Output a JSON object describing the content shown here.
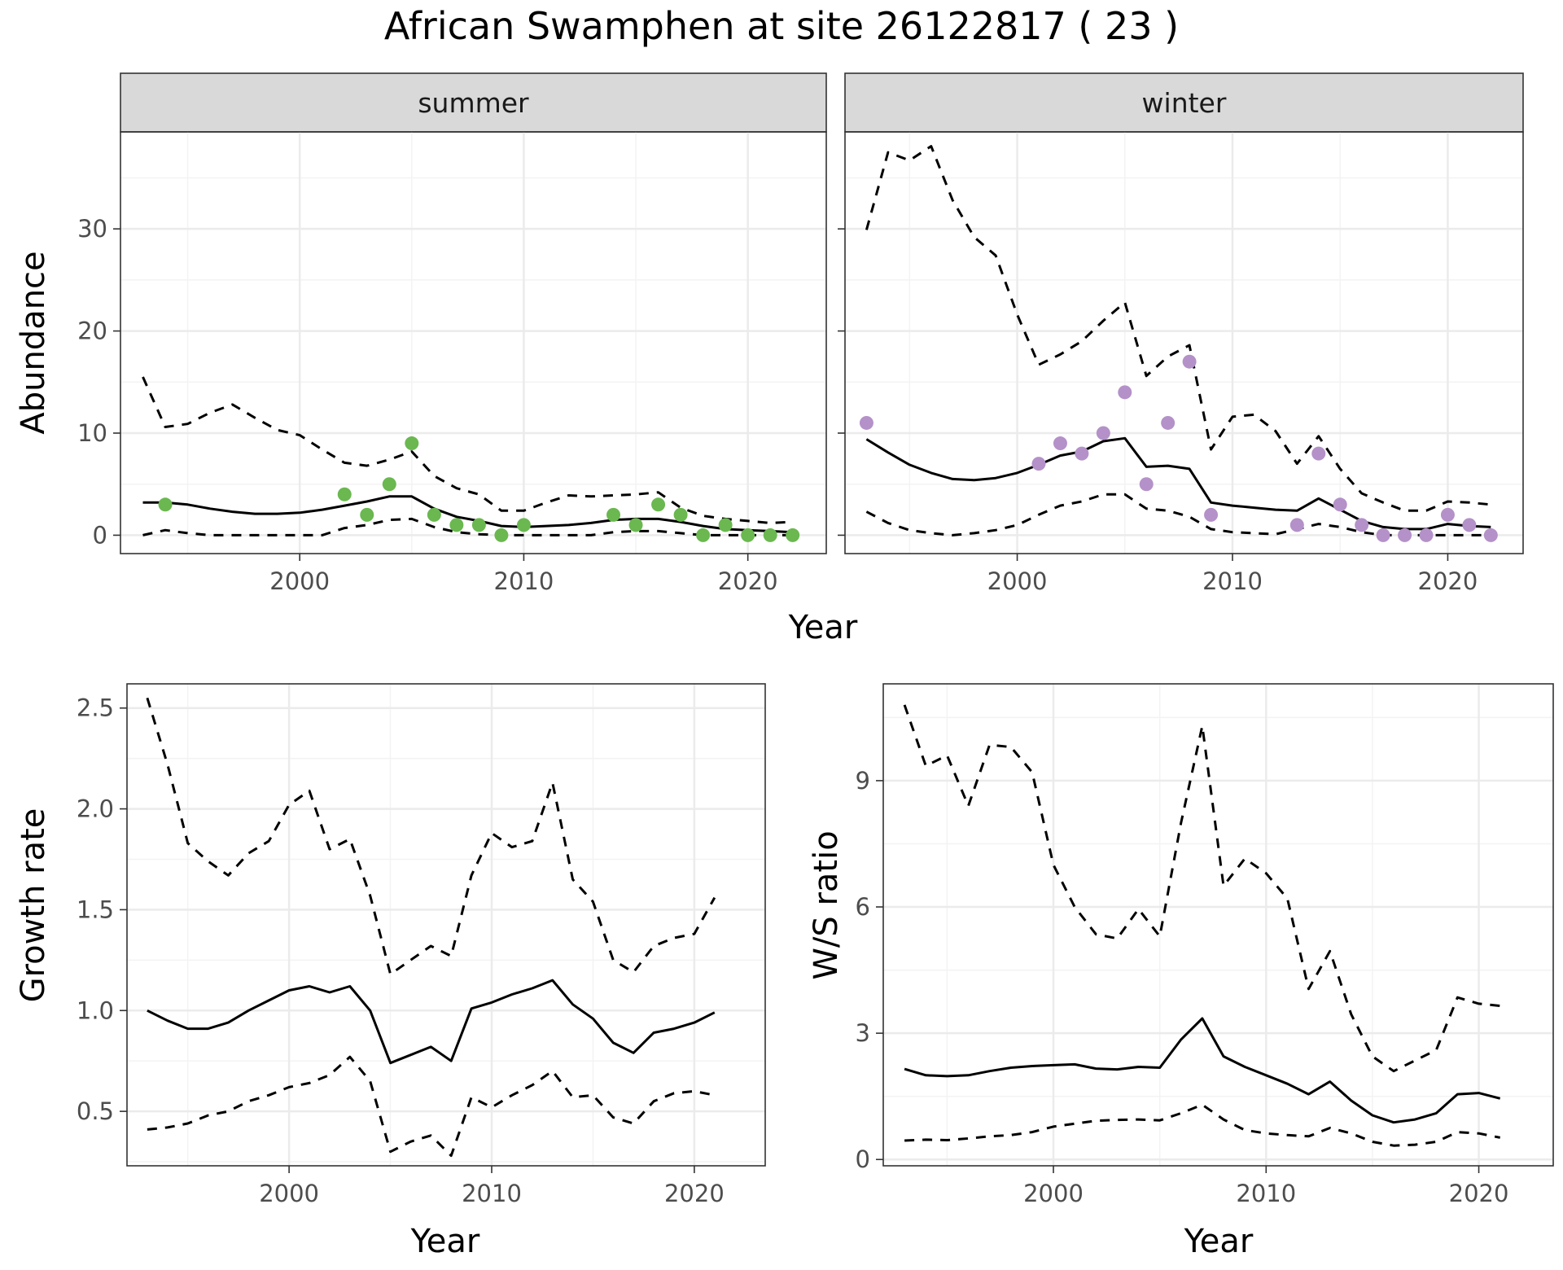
{
  "figure": {
    "title": "African Swamphen at site 26122817 ( 23 )"
  },
  "colors": {
    "summer_points": "#6ab84f",
    "winter_points": "#b491c8",
    "lines": "#000000",
    "strip_background": "#d9d9d9",
    "grid": "#ebebeb"
  },
  "chart_data": [
    {
      "id": "abundance_summer",
      "type": "line",
      "facet": "summer",
      "xlabel": "Year",
      "ylabel": "Abundance",
      "xlim": [
        1992,
        2023.5
      ],
      "ylim": [
        -1.8,
        39.5
      ],
      "x_ticks": [
        2000,
        2010,
        2020
      ],
      "y_ticks": [
        0,
        10,
        20,
        30
      ],
      "grid": true,
      "x": [
        1993,
        1994,
        1995,
        1996,
        1997,
        1998,
        1999,
        2000,
        2001,
        2002,
        2003,
        2004,
        2005,
        2006,
        2007,
        2008,
        2009,
        2010,
        2011,
        2012,
        2013,
        2014,
        2015,
        2016,
        2017,
        2018,
        2019,
        2020,
        2021,
        2022
      ],
      "series": [
        {
          "role": "estimate",
          "values": [
            3.2,
            3.2,
            3.0,
            2.6,
            2.3,
            2.1,
            2.1,
            2.2,
            2.5,
            2.9,
            3.3,
            3.8,
            3.8,
            2.6,
            1.8,
            1.4,
            0.9,
            0.8,
            0.9,
            1.0,
            1.2,
            1.5,
            1.6,
            1.6,
            1.3,
            0.9,
            0.6,
            0.5,
            0.4,
            0.3
          ]
        },
        {
          "role": "upper",
          "values": [
            15.5,
            10.6,
            10.9,
            12.0,
            12.8,
            11.5,
            10.3,
            9.8,
            8.4,
            7.1,
            6.8,
            7.4,
            8.2,
            5.8,
            4.6,
            4.0,
            2.4,
            2.4,
            3.2,
            3.9,
            3.8,
            3.9,
            4.0,
            4.2,
            2.7,
            1.9,
            1.6,
            1.4,
            1.2,
            1.3
          ]
        },
        {
          "role": "lower",
          "values": [
            0.0,
            0.5,
            0.2,
            0.0,
            0.0,
            0.0,
            0.0,
            0.0,
            0.0,
            0.7,
            1.0,
            1.5,
            1.6,
            0.8,
            0.3,
            0.1,
            0.0,
            0.0,
            0.0,
            0.0,
            0.0,
            0.3,
            0.4,
            0.4,
            0.2,
            0.0,
            0.0,
            0.0,
            0.0,
            0.0
          ]
        }
      ],
      "points": {
        "x": [
          1994,
          2002,
          2003,
          2004,
          2005,
          2006,
          2007,
          2008,
          2009,
          2010,
          2014,
          2015,
          2016,
          2017,
          2018,
          2019,
          2020,
          2021,
          2022
        ],
        "y": [
          3,
          4,
          2,
          5,
          9,
          2,
          1,
          1,
          0,
          1,
          2,
          1,
          3,
          2,
          0,
          1,
          0,
          0,
          0
        ]
      }
    },
    {
      "id": "abundance_winter",
      "type": "line",
      "facet": "winter",
      "xlabel": "Year",
      "ylabel": "Abundance",
      "xlim": [
        1992,
        2023.5
      ],
      "ylim": [
        -1.8,
        39.5
      ],
      "x_ticks": [
        2000,
        2010,
        2020
      ],
      "y_ticks": [
        0,
        10,
        20,
        30
      ],
      "grid": true,
      "x": [
        1993,
        1994,
        1995,
        1996,
        1997,
        1998,
        1999,
        2000,
        2001,
        2002,
        2003,
        2004,
        2005,
        2006,
        2007,
        2008,
        2009,
        2010,
        2011,
        2012,
        2013,
        2014,
        2015,
        2016,
        2017,
        2018,
        2019,
        2020,
        2021,
        2022
      ],
      "series": [
        {
          "role": "estimate",
          "values": [
            9.4,
            8.1,
            6.9,
            6.1,
            5.5,
            5.4,
            5.6,
            6.1,
            6.9,
            7.8,
            8.2,
            9.2,
            9.5,
            6.7,
            6.8,
            6.5,
            3.2,
            2.9,
            2.7,
            2.5,
            2.4,
            3.6,
            2.5,
            1.4,
            0.8,
            0.6,
            0.6,
            1.1,
            0.9,
            0.8
          ]
        },
        {
          "role": "upper",
          "values": [
            29.9,
            37.5,
            36.7,
            38.1,
            32.8,
            29.2,
            27.4,
            21.6,
            16.7,
            17.7,
            19.0,
            21.0,
            22.8,
            15.6,
            17.5,
            18.6,
            8.4,
            11.6,
            11.8,
            10.2,
            7.0,
            9.7,
            6.5,
            4.1,
            3.2,
            2.4,
            2.4,
            3.3,
            3.2,
            3.0
          ]
        },
        {
          "role": "lower",
          "values": [
            2.3,
            1.2,
            0.5,
            0.2,
            0.0,
            0.2,
            0.5,
            1.0,
            2.0,
            2.9,
            3.3,
            4.0,
            4.0,
            2.6,
            2.4,
            1.8,
            0.6,
            0.3,
            0.2,
            0.1,
            0.6,
            1.1,
            0.8,
            0.3,
            0.0,
            0.0,
            0.0,
            0.0,
            0.0,
            0.0
          ]
        }
      ],
      "points": {
        "x": [
          1993,
          2001,
          2002,
          2003,
          2004,
          2005,
          2006,
          2007,
          2008,
          2009,
          2013,
          2014,
          2015,
          2016,
          2017,
          2018,
          2019,
          2020,
          2021,
          2022
        ],
        "y": [
          11,
          7,
          9,
          8,
          10,
          14,
          5,
          11,
          17,
          2,
          1,
          8,
          3,
          1,
          0,
          0,
          0,
          2,
          1,
          0
        ]
      }
    },
    {
      "id": "growth_rate",
      "type": "line",
      "xlabel": "Year",
      "ylabel": "Growth rate",
      "xlim": [
        1992,
        2023.5
      ],
      "ylim": [
        0.23,
        2.62
      ],
      "x_ticks": [
        2000,
        2010,
        2020
      ],
      "y_ticks": [
        0.5,
        1.0,
        1.5,
        2.0,
        2.5
      ],
      "y_tick_labels": [
        "0.5",
        "1.0",
        "1.5",
        "2.0",
        "2.5"
      ],
      "grid": true,
      "x": [
        1993,
        1994,
        1995,
        1996,
        1997,
        1998,
        1999,
        2000,
        2001,
        2002,
        2003,
        2004,
        2005,
        2006,
        2007,
        2008,
        2009,
        2010,
        2011,
        2012,
        2013,
        2014,
        2015,
        2016,
        2017,
        2018,
        2019,
        2020,
        2021
      ],
      "series": [
        {
          "role": "estimate",
          "values": [
            1.0,
            0.95,
            0.91,
            0.91,
            0.94,
            1.0,
            1.05,
            1.1,
            1.12,
            1.09,
            1.12,
            1.0,
            0.74,
            0.78,
            0.82,
            0.75,
            1.01,
            1.04,
            1.08,
            1.11,
            1.15,
            1.03,
            0.96,
            0.84,
            0.79,
            0.89,
            0.91,
            0.94,
            0.99
          ]
        },
        {
          "role": "upper",
          "values": [
            2.55,
            2.22,
            1.83,
            1.74,
            1.67,
            1.78,
            1.84,
            2.02,
            2.09,
            1.8,
            1.85,
            1.57,
            1.18,
            1.25,
            1.32,
            1.27,
            1.67,
            1.88,
            1.81,
            1.84,
            2.13,
            1.65,
            1.54,
            1.25,
            1.19,
            1.32,
            1.36,
            1.38,
            1.56
          ]
        },
        {
          "role": "lower",
          "values": [
            0.41,
            0.42,
            0.44,
            0.48,
            0.5,
            0.55,
            0.58,
            0.62,
            0.64,
            0.68,
            0.77,
            0.65,
            0.3,
            0.35,
            0.38,
            0.28,
            0.57,
            0.52,
            0.58,
            0.63,
            0.7,
            0.57,
            0.58,
            0.47,
            0.44,
            0.55,
            0.59,
            0.6,
            0.58
          ]
        }
      ]
    },
    {
      "id": "ws_ratio",
      "type": "line",
      "xlabel": "Year",
      "ylabel": "W/S ratio",
      "xlim": [
        1992,
        2023.5
      ],
      "ylim": [
        -0.15,
        11.3
      ],
      "x_ticks": [
        2000,
        2010,
        2020
      ],
      "y_ticks": [
        0,
        3,
        6,
        9
      ],
      "grid": true,
      "x": [
        1993,
        1994,
        1995,
        1996,
        1997,
        1998,
        1999,
        2000,
        2001,
        2002,
        2003,
        2004,
        2005,
        2006,
        2007,
        2008,
        2009,
        2010,
        2011,
        2012,
        2013,
        2014,
        2015,
        2016,
        2017,
        2018,
        2019,
        2020,
        2021
      ],
      "series": [
        {
          "role": "estimate",
          "values": [
            2.15,
            2.0,
            1.98,
            2.0,
            2.1,
            2.18,
            2.22,
            2.24,
            2.26,
            2.16,
            2.14,
            2.2,
            2.18,
            2.85,
            3.35,
            2.45,
            2.2,
            2.0,
            1.8,
            1.55,
            1.85,
            1.4,
            1.05,
            0.88,
            0.95,
            1.1,
            1.55,
            1.58,
            1.45
          ]
        },
        {
          "role": "upper",
          "values": [
            10.8,
            9.35,
            9.6,
            8.4,
            9.85,
            9.8,
            9.2,
            7.0,
            6.0,
            5.35,
            5.25,
            5.95,
            5.3,
            8.0,
            10.3,
            6.5,
            7.15,
            6.8,
            6.2,
            4.05,
            4.95,
            3.45,
            2.45,
            2.1,
            2.35,
            2.6,
            3.85,
            3.7,
            3.65
          ]
        },
        {
          "role": "lower",
          "values": [
            0.45,
            0.47,
            0.46,
            0.5,
            0.55,
            0.58,
            0.65,
            0.78,
            0.85,
            0.92,
            0.94,
            0.95,
            0.93,
            1.1,
            1.3,
            0.95,
            0.7,
            0.62,
            0.58,
            0.55,
            0.75,
            0.62,
            0.42,
            0.33,
            0.35,
            0.42,
            0.65,
            0.62,
            0.52
          ]
        }
      ]
    }
  ]
}
